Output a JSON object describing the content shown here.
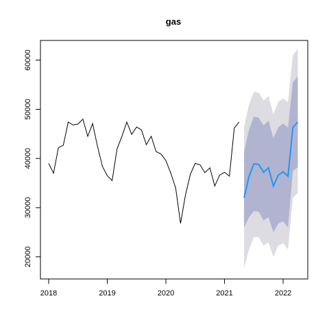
{
  "chart_data": {
    "type": "line",
    "title": "gas",
    "xlabel": "",
    "ylabel": "",
    "xlim": [
      2017.86,
      2022.42
    ],
    "ylim": [
      15500,
      64000
    ],
    "x_ticks": [
      2018,
      2019,
      2020,
      2021,
      2022
    ],
    "x_tick_labels": [
      "2018",
      "2019",
      "2020",
      "2021",
      "2022"
    ],
    "y_ticks": [
      20000,
      30000,
      40000,
      50000,
      60000
    ],
    "y_tick_labels": [
      "20000",
      "30000",
      "40000",
      "50000",
      "60000"
    ],
    "grid": false,
    "legend": false,
    "colors": {
      "history": "#000000",
      "forecast": "#2196F3",
      "band80": "#B0B4D0",
      "band95": "#DCDCE2"
    },
    "history": {
      "start": 2018.0,
      "step": 0.083333,
      "values": [
        39000,
        37000,
        42200,
        42700,
        47400,
        46800,
        47000,
        48000,
        44500,
        47100,
        42500,
        38400,
        36500,
        35500,
        42000,
        44500,
        47400,
        44900,
        46400,
        45800,
        42800,
        44500,
        41400,
        40900,
        39600,
        37000,
        34000,
        26800,
        32500,
        36800,
        39000,
        38700,
        37100,
        38100,
        34400,
        36600,
        37200,
        36400,
        46200,
        47400
      ]
    },
    "forecast": {
      "start": 2021.333333,
      "step": 0.083333,
      "mean": [
        32000,
        36300,
        38900,
        38800,
        37200,
        38100,
        34400,
        36600,
        37300,
        36400,
        46300,
        47400
      ],
      "lo80": [
        26000,
        28000,
        29300,
        29200,
        27400,
        28100,
        25000,
        26800,
        27200,
        26000,
        37500,
        38200
      ],
      "hi80": [
        41400,
        45800,
        48500,
        48300,
        46700,
        47700,
        44100,
        46300,
        47100,
        46300,
        55500,
        56700
      ],
      "lo95": [
        17800,
        21500,
        24000,
        24000,
        22300,
        23000,
        20000,
        22300,
        22800,
        21500,
        32000,
        33000
      ],
      "hi95": [
        46500,
        50900,
        53500,
        53400,
        51800,
        52700,
        49000,
        51500,
        52200,
        51500,
        61000,
        62300
      ]
    }
  }
}
